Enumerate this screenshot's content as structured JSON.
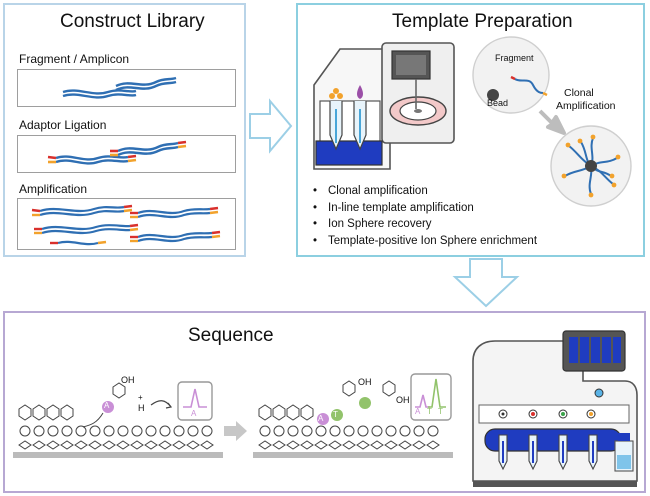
{
  "panels": {
    "construct_library": {
      "title": "Construct Library",
      "steps": [
        "Fragment / Amplicon",
        "Adaptor Ligation",
        "Amplification"
      ]
    },
    "template_preparation": {
      "title": "Template Preparation",
      "fragment_label": "Fragment",
      "bead_label": "Bead",
      "clonal_label_1": "Clonal",
      "clonal_label_2": "Amplification",
      "bullets": [
        "Clonal amplification",
        "In-line template amplification",
        "Ion Sphere recovery",
        "Template-positive Ion Sphere enrichment"
      ]
    },
    "sequence": {
      "title": "Sequence",
      "oh_label": "OH",
      "h_label": "H",
      "h_charge": "+",
      "base_a": "A",
      "base_t": "T",
      "signal_1": [
        "A"
      ],
      "signal_2": [
        "A",
        "T",
        "T"
      ]
    }
  },
  "colors": {
    "library_border": "#b9d4e8",
    "template_border": "#8ccfe0",
    "sequence_border": "#b7a8d3",
    "dna_strand": "#2f6fb3",
    "adaptor_red": "#d9302c",
    "adaptor_orange": "#f2a22c",
    "nucleotide_a": "#c98fd6",
    "nucleotide_t": "#92c36b",
    "instrument_blue": "#1f3cc0"
  }
}
